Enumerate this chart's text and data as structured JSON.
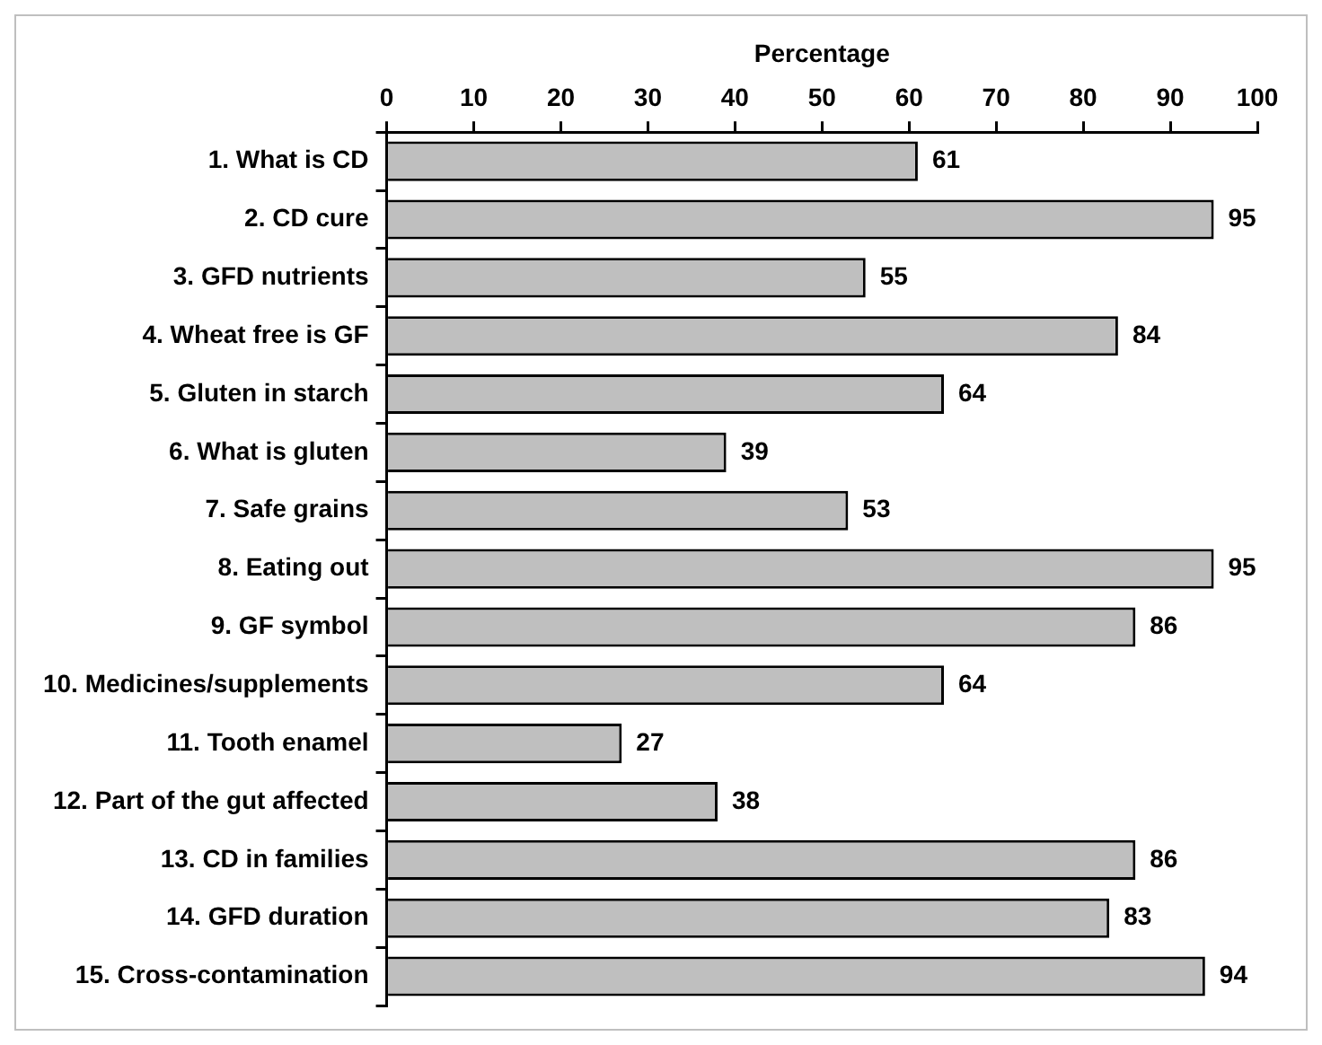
{
  "chart_data": {
    "type": "bar",
    "orientation": "horizontal",
    "xlabel": "Percentage",
    "categories": [
      "1. What is CD",
      "2. CD cure",
      "3. GFD nutrients",
      "4. Wheat free is GF",
      "5. Gluten in starch",
      "6. What is gluten",
      "7. Safe grains",
      "8. Eating out",
      "9. GF symbol",
      "10. Medicines/supplements",
      "11. Tooth enamel",
      "12. Part of the gut affected",
      "13. CD in families",
      "14. GFD duration",
      "15. Cross-contamination"
    ],
    "values": [
      61,
      95,
      55,
      84,
      64,
      39,
      53,
      95,
      86,
      64,
      27,
      38,
      86,
      83,
      94
    ],
    "color": "#bfbfbf",
    "xlim": [
      0,
      100
    ],
    "xticks": [
      0,
      10,
      20,
      30,
      40,
      50,
      60,
      70,
      80,
      90,
      100
    ],
    "grid": false,
    "legend": false,
    "data_labels": true
  }
}
